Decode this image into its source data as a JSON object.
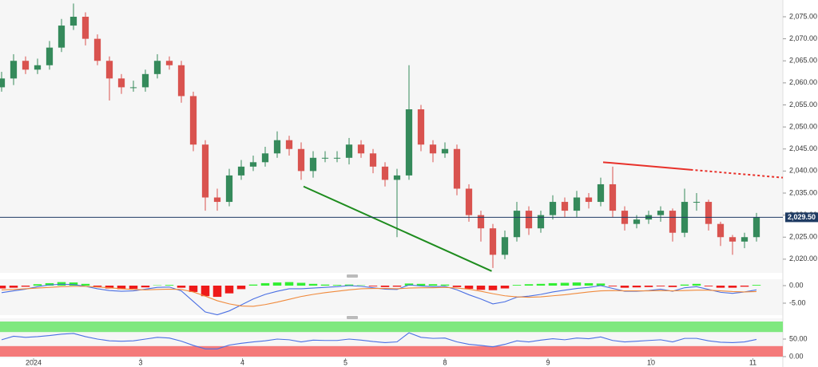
{
  "chart_data": [
    {
      "type": "candlestick",
      "xlim": [
        -0.133,
        65.2
      ],
      "ylim": [
        2016.9,
        2078.8
      ],
      "xticks": [
        {
          "value": 2.67,
          "label": "2024"
        },
        {
          "value": 11.6,
          "label": "3"
        },
        {
          "value": 20.1,
          "label": "4"
        },
        {
          "value": 28.7,
          "label": "5"
        },
        {
          "value": 37,
          "label": "8"
        },
        {
          "value": 45.6,
          "label": "9"
        },
        {
          "value": 54.2,
          "label": "10"
        },
        {
          "value": 62.7,
          "label": "11"
        }
      ],
      "yticks": [
        {
          "value": 2020,
          "label": "2,020.00"
        },
        {
          "value": 2025,
          "label": "2,025.00"
        },
        {
          "value": 2030,
          "label": "2,030.00"
        },
        {
          "value": 2035,
          "label": "2,035.00"
        },
        {
          "value": 2040,
          "label": "2,040.00"
        },
        {
          "value": 2045,
          "label": "2,045.00"
        },
        {
          "value": 2050,
          "label": "2,050.00"
        },
        {
          "value": 2055,
          "label": "2,055.00"
        },
        {
          "value": 2060,
          "label": "2,060.00"
        },
        {
          "value": 2065,
          "label": "2,065.00"
        },
        {
          "value": 2070,
          "label": "2,070.00"
        },
        {
          "value": 2075,
          "label": "2,075.00"
        }
      ],
      "up_color": "#358a5b",
      "down_color": "#d9534f",
      "open": [
        2059,
        2061,
        2065,
        2063,
        2064,
        2068,
        2073,
        2075,
        2070,
        2065,
        2061,
        2059,
        2059,
        2062,
        2065,
        2064,
        2057,
        2046,
        2034,
        2033,
        2039,
        2041,
        2042,
        2044,
        2047,
        2045,
        2040,
        2043,
        2043,
        2043,
        2046,
        2044,
        2041,
        2038,
        2039,
        2054,
        2046,
        2044,
        2045,
        2036,
        2030,
        2027,
        2021,
        2025,
        2031,
        2027,
        2030,
        2033,
        2031,
        2034,
        2033,
        2037,
        2031,
        2028,
        2029,
        2030,
        2031,
        2026,
        2033,
        2033,
        2028,
        2025,
        2024,
        2025
      ],
      "high": [
        2062.5,
        2066.5,
        2066,
        2065.5,
        2069.5,
        2074.5,
        2078,
        2076,
        2071,
        2066,
        2062,
        2060.5,
        2063,
        2066.5,
        2066,
        2065,
        2058,
        2047,
        2036,
        2040.5,
        2042.5,
        2043.5,
        2045.5,
        2049,
        2048,
        2046.5,
        2044.5,
        2044.5,
        2044.5,
        2047.5,
        2047,
        2045,
        2042,
        2040.5,
        2064,
        2055,
        2047,
        2046.5,
        2046,
        2037,
        2031,
        2028,
        2026.5,
        2033,
        2032,
        2031,
        2034.5,
        2034,
        2035.5,
        2035,
        2038.5,
        2041,
        2032,
        2030,
        2031,
        2032,
        2031.5,
        2036,
        2035,
        2033.5,
        2028.5,
        2025.5,
        2026,
        2030.5
      ],
      "low": [
        2058,
        2059.5,
        2062,
        2062,
        2063,
        2067,
        2072,
        2068.5,
        2064,
        2056,
        2057.5,
        2058,
        2058,
        2061,
        2063,
        2055.5,
        2044.5,
        2031,
        2031,
        2032,
        2038,
        2040,
        2041,
        2043,
        2043.5,
        2038,
        2038.5,
        2042,
        2042,
        2041.5,
        2043,
        2039.5,
        2036.5,
        2025,
        2038,
        2044.5,
        2042,
        2043,
        2034.5,
        2028.5,
        2024,
        2018,
        2020,
        2024,
        2025.5,
        2026,
        2029,
        2029.5,
        2029.5,
        2031.5,
        2032,
        2029.5,
        2026.5,
        2027,
        2028,
        2028.5,
        2024,
        2025,
        2031,
        2026.5,
        2023,
        2021,
        2022.5,
        2024
      ],
      "close": [
        2061,
        2065,
        2063,
        2064,
        2068,
        2073,
        2075,
        2070,
        2065,
        2061,
        2059,
        2059,
        2062,
        2065,
        2064,
        2057,
        2046,
        2034,
        2033,
        2039,
        2041,
        2042,
        2044,
        2047,
        2045,
        2040,
        2043,
        2043,
        2043,
        2046,
        2044,
        2041,
        2038,
        2039,
        2054,
        2046,
        2044,
        2045,
        2036,
        2030,
        2027,
        2021,
        2025,
        2031,
        2027,
        2030,
        2033,
        2031,
        2034,
        2033,
        2037,
        2031,
        2028,
        2029,
        2030,
        2031,
        2026,
        2033,
        2033,
        2028,
        2025,
        2024,
        2025,
        2029.5
      ],
      "price_line": {
        "value": 2029.5,
        "label": "2,029.50",
        "color": "#1f3b63"
      },
      "trendlines": [
        {
          "x": [
            25.2,
            40.9
          ],
          "y": [
            2036.5,
            2017.3
          ],
          "color": "#1e8c1e",
          "dashed": false
        },
        {
          "x": [
            50.2,
            57.5
          ],
          "y": [
            2042,
            2040.3
          ],
          "color": "#e8312a",
          "dashed": false
        },
        {
          "x": [
            57.5,
            65.2
          ],
          "y": [
            2040.3,
            2038.5
          ],
          "color": "#e8312a",
          "dashed": true
        }
      ]
    },
    {
      "type": "macd",
      "xlim": [
        -0.133,
        65.2
      ],
      "ylim": [
        -8.41,
        1.82
      ],
      "yticks": [
        {
          "value": 0,
          "label": "0.00"
        },
        {
          "value": -5,
          "label": "-5.00"
        }
      ],
      "up_color": "#33ee33",
      "down_color": "#ee1a1a",
      "histogram": [
        -0.8,
        -0.6,
        -0.3,
        0.4,
        0.7,
        1.0,
        0.9,
        0.5,
        -0.3,
        -0.8,
        -1.0,
        -0.9,
        -0.5,
        0.1,
        0.2,
        -0.6,
        -1.8,
        -3.0,
        -3.2,
        -2.2,
        -1.0,
        0.3,
        0.7,
        0.9,
        1.0,
        0.8,
        0.5,
        0.3,
        0.2,
        0.3,
        0.1,
        -0.2,
        -0.4,
        -0.3,
        0.6,
        0.5,
        0.4,
        0.3,
        -0.4,
        -0.9,
        -1.2,
        -1.3,
        -0.8,
        0.2,
        0.4,
        0.5,
        0.7,
        0.8,
        0.9,
        0.7,
        0.6,
        -0.2,
        -0.6,
        -0.5,
        -0.4,
        -0.2,
        -0.4,
        0.3,
        0.5,
        -0.2,
        -0.6,
        -0.6,
        -0.3,
        0.2
      ],
      "series": [
        {
          "color": "#4a6fe3",
          "values": [
            -2.0,
            -1.5,
            -1.0,
            -0.3,
            0.2,
            0.4,
            0.3,
            -0.2,
            -0.9,
            -1.4,
            -1.6,
            -1.5,
            -1.0,
            -0.5,
            -0.4,
            -1.5,
            -4.5,
            -7.5,
            -8.3,
            -7.2,
            -5.5,
            -3.8,
            -2.5,
            -1.6,
            -0.9,
            -0.9,
            -0.7,
            -0.5,
            -0.3,
            0.0,
            -0.2,
            -0.6,
            -1.0,
            -1.1,
            0.2,
            -0.1,
            -0.3,
            -0.2,
            -1.2,
            -2.6,
            -3.8,
            -5.2,
            -4.6,
            -3.3,
            -3.0,
            -2.5,
            -1.8,
            -1.3,
            -0.8,
            -0.5,
            0.0,
            -0.8,
            -1.6,
            -1.6,
            -1.4,
            -1.0,
            -1.6,
            -0.6,
            -0.3,
            -1.1,
            -1.9,
            -2.2,
            -1.8,
            -1.2
          ]
        },
        {
          "color": "#f08a3c",
          "values": [
            -1.2,
            -1.1,
            -0.9,
            -0.7,
            -0.5,
            -0.3,
            -0.2,
            -0.2,
            -0.4,
            -0.6,
            -0.9,
            -1.1,
            -1.2,
            -1.1,
            -1.0,
            -1.1,
            -1.8,
            -3.0,
            -4.3,
            -5.2,
            -5.8,
            -5.9,
            -5.4,
            -4.7,
            -3.9,
            -3.1,
            -2.5,
            -2.0,
            -1.6,
            -1.2,
            -0.9,
            -0.8,
            -0.8,
            -0.9,
            -0.7,
            -0.6,
            -0.6,
            -0.5,
            -0.7,
            -1.0,
            -1.6,
            -2.3,
            -2.9,
            -3.2,
            -3.3,
            -3.2,
            -2.9,
            -2.6,
            -2.2,
            -1.8,
            -1.5,
            -1.4,
            -1.5,
            -1.5,
            -1.5,
            -1.4,
            -1.5,
            -1.4,
            -1.3,
            -1.3,
            -1.5,
            -1.7,
            -1.8,
            -1.7
          ]
        }
      ]
    },
    {
      "type": "rsi",
      "xlim": [
        -0.133,
        65.2
      ],
      "ylim": [
        0,
        100
      ],
      "yticks": [
        {
          "value": 50,
          "label": "50.00"
        },
        {
          "value": 0,
          "label": "0.00"
        }
      ],
      "bands": [
        {
          "from": 70,
          "to": 100,
          "color": "#7fe87f"
        },
        {
          "from": 0,
          "to": 30,
          "color": "#f47a7a"
        }
      ],
      "series": [
        {
          "color": "#4a6fe3",
          "values": [
            48,
            58,
            55,
            57,
            60,
            64,
            66,
            57,
            50,
            45,
            44,
            45,
            50,
            55,
            53,
            44,
            32,
            22,
            22,
            33,
            38,
            42,
            45,
            50,
            48,
            42,
            47,
            46,
            46,
            50,
            47,
            43,
            40,
            42,
            68,
            55,
            52,
            53,
            42,
            35,
            32,
            28,
            35,
            45,
            42,
            47,
            51,
            48,
            53,
            51,
            56,
            46,
            42,
            44,
            46,
            48,
            42,
            52,
            52,
            45,
            41,
            40,
            42,
            49
          ]
        }
      ]
    }
  ]
}
